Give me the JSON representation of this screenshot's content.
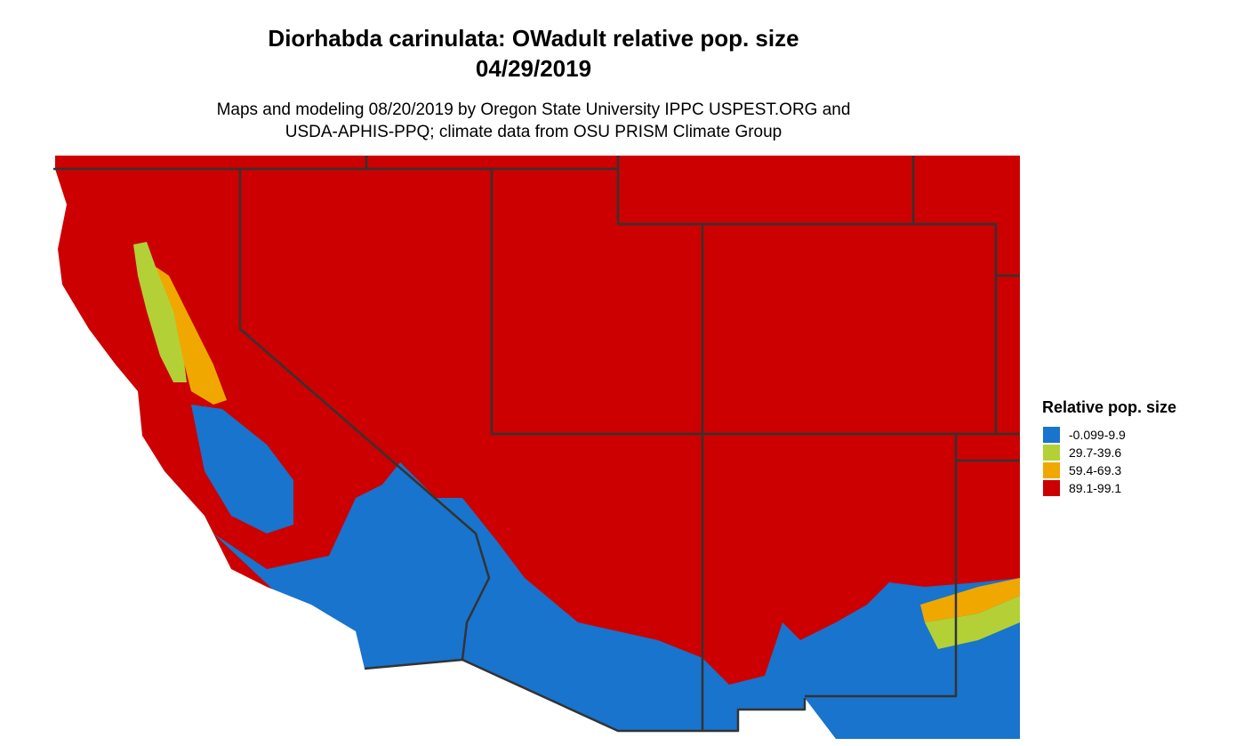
{
  "title": [
    "Diorhabda carinulata: OWadult relative pop. size",
    "04/29/2019"
  ],
  "subtitle": [
    "Maps and modeling 08/20/2019 by Oregon State University IPPC USPEST.ORG and",
    "USDA-APHIS-PPQ; climate data from OSU PRISM Climate Group"
  ],
  "legend": {
    "title": "Relative pop. size",
    "items": [
      {
        "label": "-0.099-9.9",
        "color": "#1874cd"
      },
      {
        "label": "29.7-39.6",
        "color": "#b3d136"
      },
      {
        "label": "59.4-69.3",
        "color": "#f0a800"
      },
      {
        "label": "89.1-99.1",
        "color": "#cc0000"
      }
    ]
  }
}
